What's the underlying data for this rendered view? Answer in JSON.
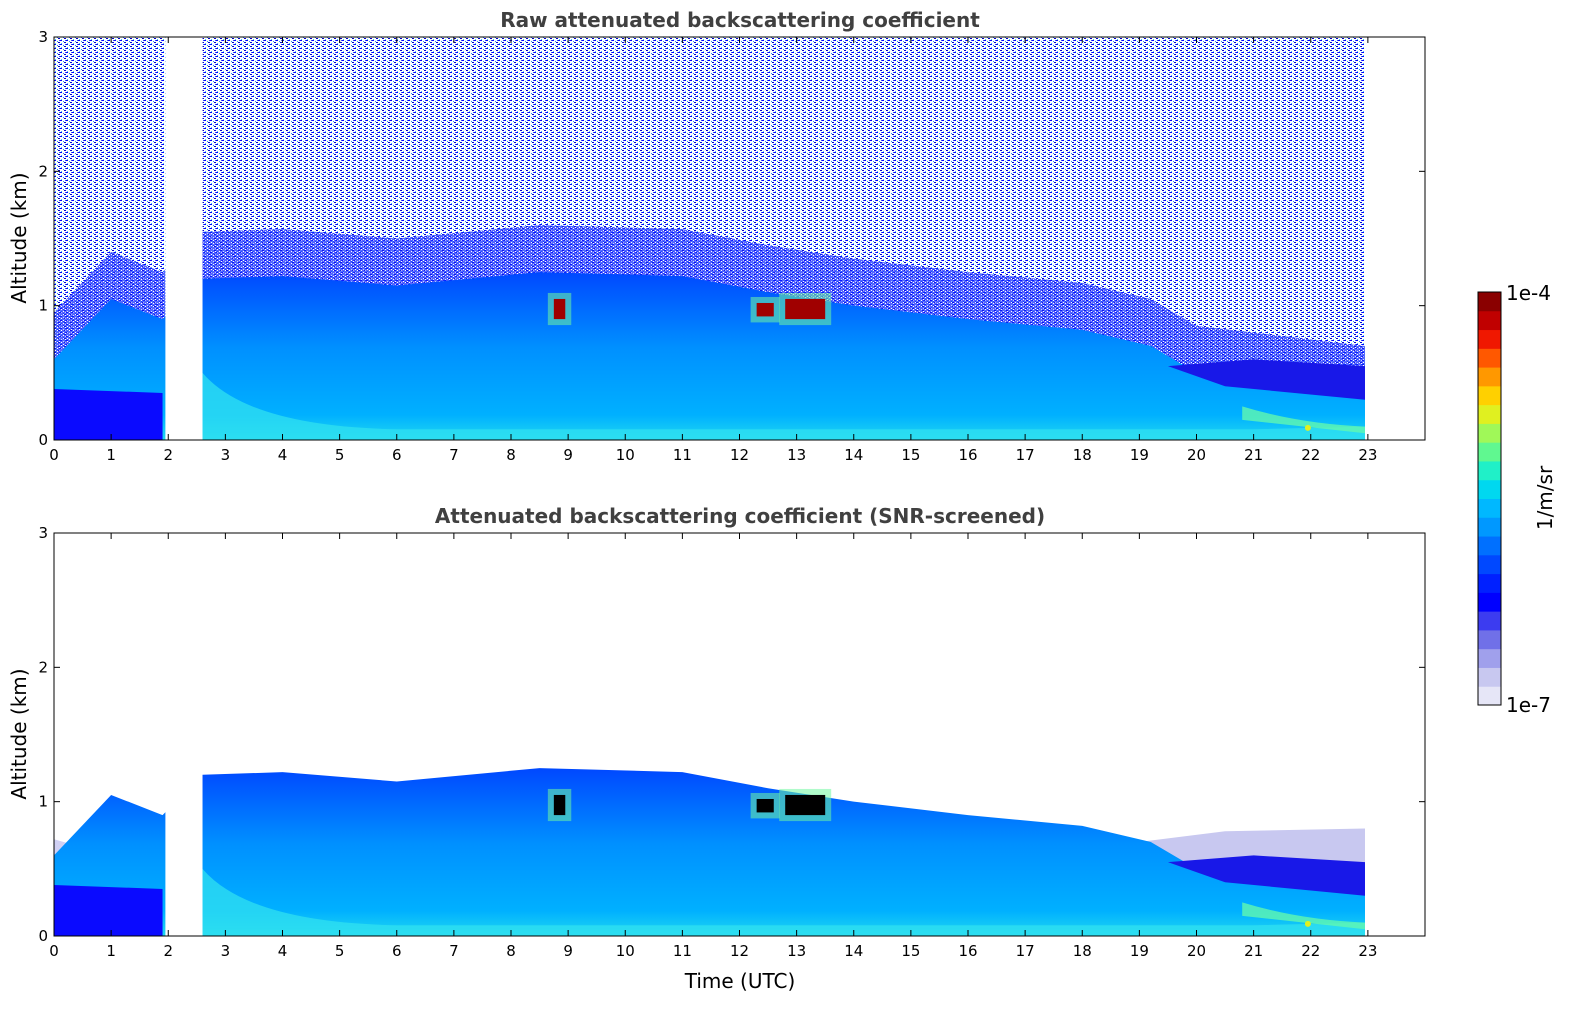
{
  "chart_data": [
    {
      "type": "heatmap",
      "title": "Raw attenuated backscattering coefficient",
      "xlabel": "",
      "ylabel": "Altitude (km)",
      "xlim": [
        0,
        24
      ],
      "ylim": [
        0,
        3
      ],
      "xticks": [
        "0",
        "1",
        "2",
        "3",
        "4",
        "5",
        "6",
        "7",
        "8",
        "9",
        "10",
        "11",
        "12",
        "13",
        "14",
        "15",
        "16",
        "17",
        "18",
        "19",
        "20",
        "21",
        "22",
        "23"
      ],
      "yticks": [
        "0",
        "1",
        "2",
        "3"
      ],
      "data_gaps_hours": [
        [
          1.95,
          2.6
        ],
        [
          22.95,
          24
        ]
      ],
      "boundary_layer_top_km": [
        {
          "t": 0.0,
          "h": 0.6
        },
        {
          "t": 1.0,
          "h": 1.05
        },
        {
          "t": 1.9,
          "h": 0.9
        },
        {
          "t": 2.6,
          "h": 1.2
        },
        {
          "t": 4.0,
          "h": 1.22
        },
        {
          "t": 6.0,
          "h": 1.15
        },
        {
          "t": 8.5,
          "h": 1.25
        },
        {
          "t": 11.0,
          "h": 1.22
        },
        {
          "t": 12.5,
          "h": 1.1
        },
        {
          "t": 14.0,
          "h": 1.0
        },
        {
          "t": 16.0,
          "h": 0.9
        },
        {
          "t": 18.0,
          "h": 0.82
        },
        {
          "t": 19.2,
          "h": 0.7
        },
        {
          "t": 20.0,
          "h": 0.5
        },
        {
          "t": 21.0,
          "h": 0.45
        },
        {
          "t": 22.95,
          "h": 0.35
        }
      ],
      "high_value_features": [
        {
          "t_start": 8.75,
          "t_end": 8.95,
          "h_min": 0.9,
          "h_max": 1.05
        },
        {
          "t_start": 12.3,
          "t_end": 12.6,
          "h_min": 0.92,
          "h_max": 1.02
        },
        {
          "t_start": 12.8,
          "t_end": 13.5,
          "h_min": 0.9,
          "h_max": 1.05
        }
      ],
      "screening": "raw"
    },
    {
      "type": "heatmap",
      "title": "Attenuated backscattering coefficient (SNR-screened)",
      "xlabel": "Time (UTC)",
      "ylabel": "Altitude (km)",
      "xlim": [
        0,
        24
      ],
      "ylim": [
        0,
        3
      ],
      "xticks": [
        "0",
        "1",
        "2",
        "3",
        "4",
        "5",
        "6",
        "7",
        "8",
        "9",
        "10",
        "11",
        "12",
        "13",
        "14",
        "15",
        "16",
        "17",
        "18",
        "19",
        "20",
        "21",
        "22",
        "23"
      ],
      "yticks": [
        "0",
        "1",
        "2",
        "3"
      ],
      "data_gaps_hours": [
        [
          1.95,
          2.6
        ],
        [
          22.95,
          24
        ]
      ],
      "screening": "SNR"
    }
  ],
  "colorbar": {
    "label": "1/m/sr",
    "max_label": "1e-4",
    "min_label": "1e-7",
    "scale": "log",
    "colors": [
      "#e6e6f7",
      "#c8c8f0",
      "#a0a0ec",
      "#7070e8",
      "#3c3cf0",
      "#0000ff",
      "#0020ff",
      "#0048ff",
      "#0070ff",
      "#0098ff",
      "#00b8ff",
      "#00d8f0",
      "#20f0c8",
      "#60f890",
      "#a0f858",
      "#e0f020",
      "#ffd000",
      "#ff9800",
      "#ff5800",
      "#f01800",
      "#c00000",
      "#8a0000"
    ]
  }
}
